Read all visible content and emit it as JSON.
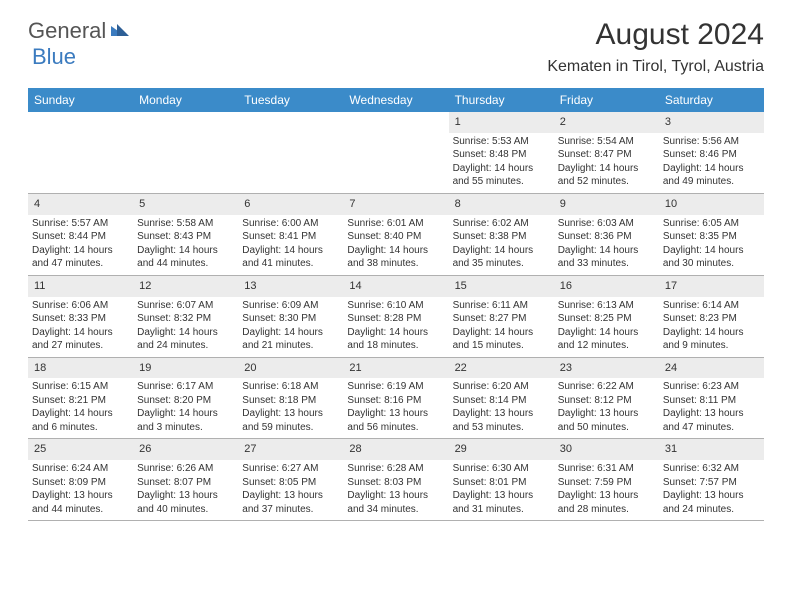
{
  "logo": {
    "general": "General",
    "blue": "Blue"
  },
  "title": "August 2024",
  "location": "Kematen in Tirol, Tyrol, Austria",
  "weekdays": [
    "Sunday",
    "Monday",
    "Tuesday",
    "Wednesday",
    "Thursday",
    "Friday",
    "Saturday"
  ],
  "colors": {
    "header_bg": "#3b8bc9",
    "header_text": "#ffffff",
    "daynum_bg": "#ececec",
    "logo_gray": "#555555",
    "logo_blue": "#3b7bbf",
    "text": "#333333",
    "border": "#b0b0b0"
  },
  "weeks": [
    [
      {
        "n": "",
        "sr": "",
        "ss": "",
        "dl": ""
      },
      {
        "n": "",
        "sr": "",
        "ss": "",
        "dl": ""
      },
      {
        "n": "",
        "sr": "",
        "ss": "",
        "dl": ""
      },
      {
        "n": "",
        "sr": "",
        "ss": "",
        "dl": ""
      },
      {
        "n": "1",
        "sr": "Sunrise: 5:53 AM",
        "ss": "Sunset: 8:48 PM",
        "dl": "Daylight: 14 hours and 55 minutes."
      },
      {
        "n": "2",
        "sr": "Sunrise: 5:54 AM",
        "ss": "Sunset: 8:47 PM",
        "dl": "Daylight: 14 hours and 52 minutes."
      },
      {
        "n": "3",
        "sr": "Sunrise: 5:56 AM",
        "ss": "Sunset: 8:46 PM",
        "dl": "Daylight: 14 hours and 49 minutes."
      }
    ],
    [
      {
        "n": "4",
        "sr": "Sunrise: 5:57 AM",
        "ss": "Sunset: 8:44 PM",
        "dl": "Daylight: 14 hours and 47 minutes."
      },
      {
        "n": "5",
        "sr": "Sunrise: 5:58 AM",
        "ss": "Sunset: 8:43 PM",
        "dl": "Daylight: 14 hours and 44 minutes."
      },
      {
        "n": "6",
        "sr": "Sunrise: 6:00 AM",
        "ss": "Sunset: 8:41 PM",
        "dl": "Daylight: 14 hours and 41 minutes."
      },
      {
        "n": "7",
        "sr": "Sunrise: 6:01 AM",
        "ss": "Sunset: 8:40 PM",
        "dl": "Daylight: 14 hours and 38 minutes."
      },
      {
        "n": "8",
        "sr": "Sunrise: 6:02 AM",
        "ss": "Sunset: 8:38 PM",
        "dl": "Daylight: 14 hours and 35 minutes."
      },
      {
        "n": "9",
        "sr": "Sunrise: 6:03 AM",
        "ss": "Sunset: 8:36 PM",
        "dl": "Daylight: 14 hours and 33 minutes."
      },
      {
        "n": "10",
        "sr": "Sunrise: 6:05 AM",
        "ss": "Sunset: 8:35 PM",
        "dl": "Daylight: 14 hours and 30 minutes."
      }
    ],
    [
      {
        "n": "11",
        "sr": "Sunrise: 6:06 AM",
        "ss": "Sunset: 8:33 PM",
        "dl": "Daylight: 14 hours and 27 minutes."
      },
      {
        "n": "12",
        "sr": "Sunrise: 6:07 AM",
        "ss": "Sunset: 8:32 PM",
        "dl": "Daylight: 14 hours and 24 minutes."
      },
      {
        "n": "13",
        "sr": "Sunrise: 6:09 AM",
        "ss": "Sunset: 8:30 PM",
        "dl": "Daylight: 14 hours and 21 minutes."
      },
      {
        "n": "14",
        "sr": "Sunrise: 6:10 AM",
        "ss": "Sunset: 8:28 PM",
        "dl": "Daylight: 14 hours and 18 minutes."
      },
      {
        "n": "15",
        "sr": "Sunrise: 6:11 AM",
        "ss": "Sunset: 8:27 PM",
        "dl": "Daylight: 14 hours and 15 minutes."
      },
      {
        "n": "16",
        "sr": "Sunrise: 6:13 AM",
        "ss": "Sunset: 8:25 PM",
        "dl": "Daylight: 14 hours and 12 minutes."
      },
      {
        "n": "17",
        "sr": "Sunrise: 6:14 AM",
        "ss": "Sunset: 8:23 PM",
        "dl": "Daylight: 14 hours and 9 minutes."
      }
    ],
    [
      {
        "n": "18",
        "sr": "Sunrise: 6:15 AM",
        "ss": "Sunset: 8:21 PM",
        "dl": "Daylight: 14 hours and 6 minutes."
      },
      {
        "n": "19",
        "sr": "Sunrise: 6:17 AM",
        "ss": "Sunset: 8:20 PM",
        "dl": "Daylight: 14 hours and 3 minutes."
      },
      {
        "n": "20",
        "sr": "Sunrise: 6:18 AM",
        "ss": "Sunset: 8:18 PM",
        "dl": "Daylight: 13 hours and 59 minutes."
      },
      {
        "n": "21",
        "sr": "Sunrise: 6:19 AM",
        "ss": "Sunset: 8:16 PM",
        "dl": "Daylight: 13 hours and 56 minutes."
      },
      {
        "n": "22",
        "sr": "Sunrise: 6:20 AM",
        "ss": "Sunset: 8:14 PM",
        "dl": "Daylight: 13 hours and 53 minutes."
      },
      {
        "n": "23",
        "sr": "Sunrise: 6:22 AM",
        "ss": "Sunset: 8:12 PM",
        "dl": "Daylight: 13 hours and 50 minutes."
      },
      {
        "n": "24",
        "sr": "Sunrise: 6:23 AM",
        "ss": "Sunset: 8:11 PM",
        "dl": "Daylight: 13 hours and 47 minutes."
      }
    ],
    [
      {
        "n": "25",
        "sr": "Sunrise: 6:24 AM",
        "ss": "Sunset: 8:09 PM",
        "dl": "Daylight: 13 hours and 44 minutes."
      },
      {
        "n": "26",
        "sr": "Sunrise: 6:26 AM",
        "ss": "Sunset: 8:07 PM",
        "dl": "Daylight: 13 hours and 40 minutes."
      },
      {
        "n": "27",
        "sr": "Sunrise: 6:27 AM",
        "ss": "Sunset: 8:05 PM",
        "dl": "Daylight: 13 hours and 37 minutes."
      },
      {
        "n": "28",
        "sr": "Sunrise: 6:28 AM",
        "ss": "Sunset: 8:03 PM",
        "dl": "Daylight: 13 hours and 34 minutes."
      },
      {
        "n": "29",
        "sr": "Sunrise: 6:30 AM",
        "ss": "Sunset: 8:01 PM",
        "dl": "Daylight: 13 hours and 31 minutes."
      },
      {
        "n": "30",
        "sr": "Sunrise: 6:31 AM",
        "ss": "Sunset: 7:59 PM",
        "dl": "Daylight: 13 hours and 28 minutes."
      },
      {
        "n": "31",
        "sr": "Sunrise: 6:32 AM",
        "ss": "Sunset: 7:57 PM",
        "dl": "Daylight: 13 hours and 24 minutes."
      }
    ]
  ]
}
